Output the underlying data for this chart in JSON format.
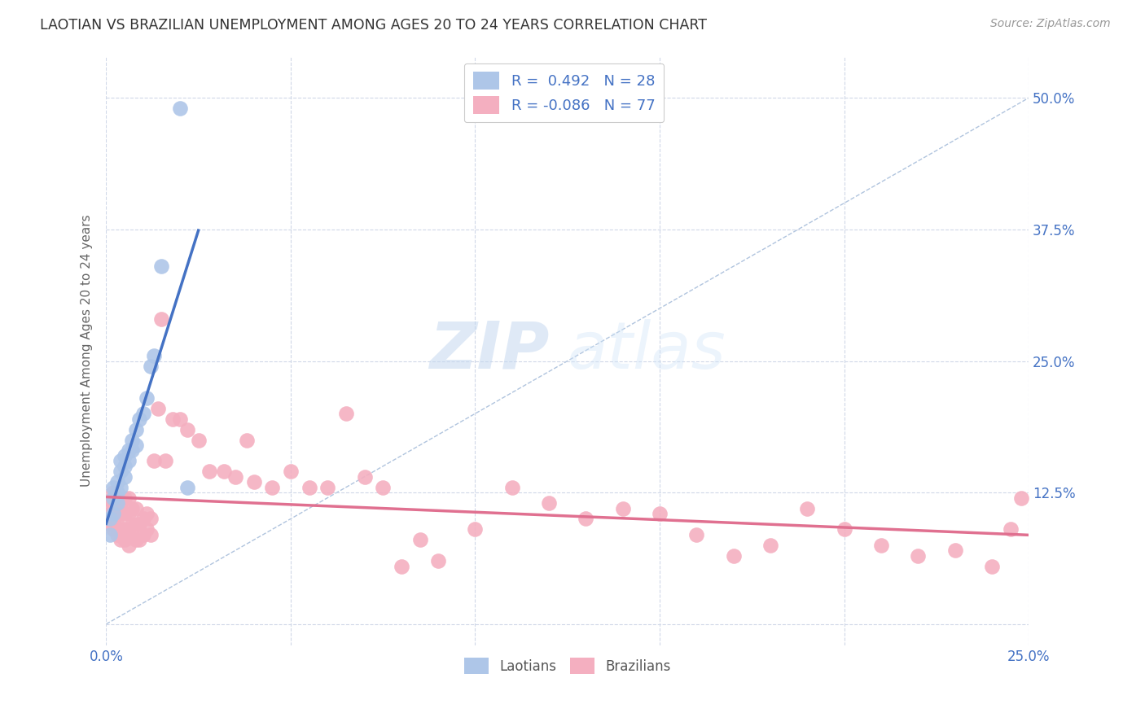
{
  "title": "LAOTIAN VS BRAZILIAN UNEMPLOYMENT AMONG AGES 20 TO 24 YEARS CORRELATION CHART",
  "source": "Source: ZipAtlas.com",
  "ylabel": "Unemployment Among Ages 20 to 24 years",
  "xlim": [
    0.0,
    0.25
  ],
  "ylim": [
    -0.02,
    0.54
  ],
  "xticks": [
    0.0,
    0.05,
    0.1,
    0.15,
    0.2,
    0.25
  ],
  "xticklabels": [
    "0.0%",
    "",
    "",
    "",
    "",
    "25.0%"
  ],
  "yticks": [
    0.0,
    0.125,
    0.25,
    0.375,
    0.5
  ],
  "yticklabels": [
    "",
    "12.5%",
    "25.0%",
    "37.5%",
    "50.0%"
  ],
  "watermark_zip": "ZIP",
  "watermark_atlas": "atlas",
  "laotian_color": "#aec6e8",
  "brazilian_color": "#f4afc0",
  "laotian_line_color": "#4472c4",
  "brazilian_line_color": "#e07090",
  "diagonal_color": "#b0c4de",
  "legend_r_laotian": "0.492",
  "legend_n_laotian": "28",
  "legend_r_brazilian": "-0.086",
  "legend_n_brazilian": "77",
  "laotian_x": [
    0.001,
    0.001,
    0.002,
    0.002,
    0.002,
    0.003,
    0.003,
    0.003,
    0.004,
    0.004,
    0.004,
    0.005,
    0.005,
    0.005,
    0.006,
    0.006,
    0.007,
    0.007,
    0.008,
    0.008,
    0.009,
    0.01,
    0.011,
    0.012,
    0.013,
    0.015,
    0.02,
    0.022
  ],
  "laotian_y": [
    0.085,
    0.1,
    0.105,
    0.12,
    0.13,
    0.115,
    0.125,
    0.135,
    0.13,
    0.145,
    0.155,
    0.14,
    0.15,
    0.16,
    0.155,
    0.165,
    0.165,
    0.175,
    0.17,
    0.185,
    0.195,
    0.2,
    0.215,
    0.245,
    0.255,
    0.34,
    0.49,
    0.13
  ],
  "brazilian_x": [
    0.001,
    0.001,
    0.001,
    0.002,
    0.002,
    0.002,
    0.002,
    0.003,
    0.003,
    0.003,
    0.003,
    0.004,
    0.004,
    0.004,
    0.004,
    0.005,
    0.005,
    0.005,
    0.005,
    0.006,
    0.006,
    0.006,
    0.006,
    0.007,
    0.007,
    0.007,
    0.008,
    0.008,
    0.008,
    0.009,
    0.009,
    0.01,
    0.01,
    0.011,
    0.011,
    0.012,
    0.012,
    0.013,
    0.014,
    0.015,
    0.016,
    0.018,
    0.02,
    0.022,
    0.025,
    0.028,
    0.032,
    0.035,
    0.038,
    0.04,
    0.045,
    0.05,
    0.055,
    0.06,
    0.065,
    0.07,
    0.075,
    0.08,
    0.085,
    0.09,
    0.1,
    0.11,
    0.12,
    0.13,
    0.14,
    0.15,
    0.16,
    0.17,
    0.18,
    0.19,
    0.2,
    0.21,
    0.22,
    0.23,
    0.24,
    0.245,
    0.248
  ],
  "brazilian_y": [
    0.095,
    0.105,
    0.115,
    0.09,
    0.1,
    0.115,
    0.125,
    0.085,
    0.095,
    0.11,
    0.12,
    0.08,
    0.09,
    0.105,
    0.115,
    0.08,
    0.09,
    0.105,
    0.12,
    0.075,
    0.09,
    0.105,
    0.12,
    0.085,
    0.095,
    0.11,
    0.08,
    0.095,
    0.11,
    0.08,
    0.095,
    0.085,
    0.1,
    0.09,
    0.105,
    0.085,
    0.1,
    0.155,
    0.205,
    0.29,
    0.155,
    0.195,
    0.195,
    0.185,
    0.175,
    0.145,
    0.145,
    0.14,
    0.175,
    0.135,
    0.13,
    0.145,
    0.13,
    0.13,
    0.2,
    0.14,
    0.13,
    0.055,
    0.08,
    0.06,
    0.09,
    0.13,
    0.115,
    0.1,
    0.11,
    0.105,
    0.085,
    0.065,
    0.075,
    0.11,
    0.09,
    0.075,
    0.065,
    0.07,
    0.055,
    0.09,
    0.12
  ],
  "background_color": "#ffffff",
  "grid_color": "#d0d8e8",
  "title_color": "#333333",
  "axis_label_color": "#666666",
  "tick_label_color": "#4472c4"
}
